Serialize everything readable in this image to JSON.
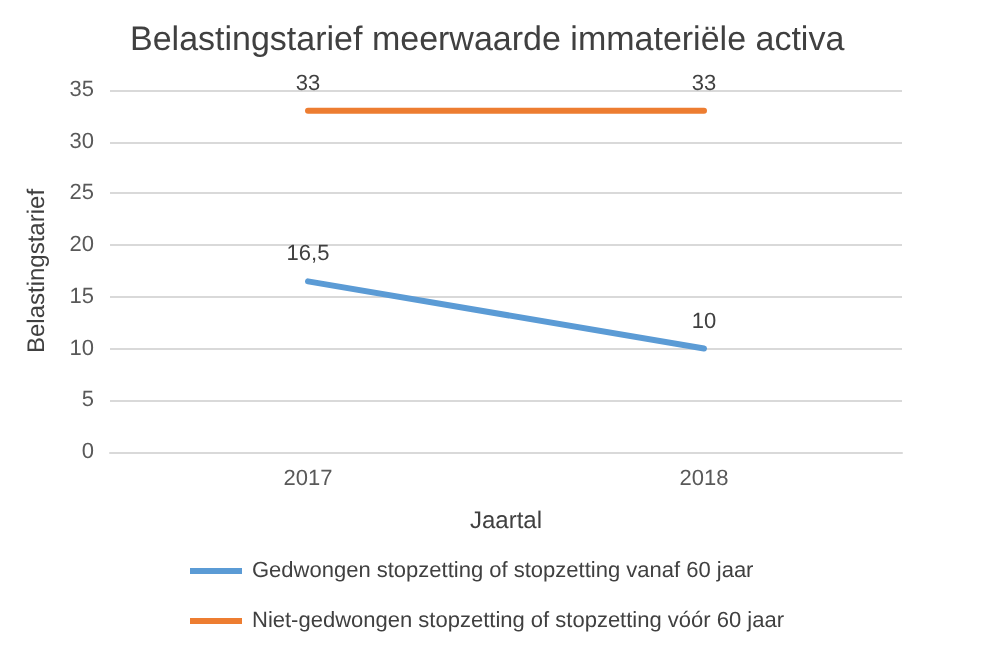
{
  "chart_data": {
    "type": "line",
    "title": "Belastingstarief meerwaarde immateriële activa",
    "xlabel": "Jaartal",
    "ylabel": "Belastingstarief",
    "categories": [
      "2017",
      "2018"
    ],
    "series": [
      {
        "name": "Gedwongen stopzetting of stopzetting vanaf 60 jaar",
        "color": "#5b9bd5",
        "values": [
          16.5,
          10
        ],
        "value_labels": [
          "16,5",
          "10"
        ]
      },
      {
        "name": "Niet-gedwongen stopzetting of stopzetting vóór 60 jaar",
        "color": "#ed7d31",
        "values": [
          33,
          33
        ],
        "value_labels": [
          "33",
          "33"
        ]
      }
    ],
    "ylim": [
      0,
      35
    ],
    "yticks": [
      0,
      5,
      10,
      15,
      20,
      25,
      30,
      35
    ],
    "grid": "y",
    "legend": "bottom",
    "marker": "none",
    "line_style": "solid"
  }
}
